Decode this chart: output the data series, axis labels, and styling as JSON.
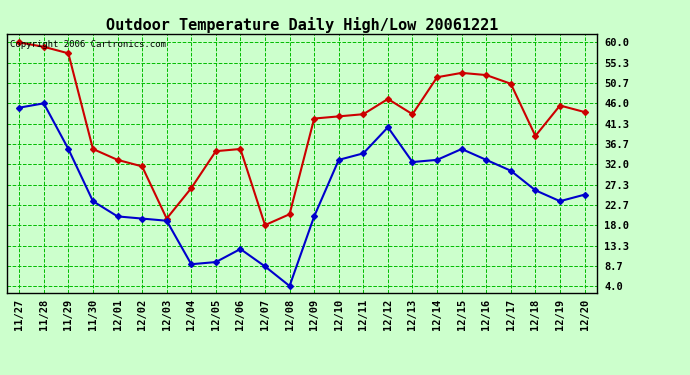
{
  "title": "Outdoor Temperature Daily High/Low 20061221",
  "copyright": "Copyright 2006 Cartronics.com",
  "dates": [
    "11/27",
    "11/28",
    "11/29",
    "11/30",
    "12/01",
    "12/02",
    "12/03",
    "12/04",
    "12/05",
    "12/06",
    "12/07",
    "12/08",
    "12/09",
    "12/10",
    "12/11",
    "12/12",
    "12/13",
    "12/14",
    "12/15",
    "12/16",
    "12/17",
    "12/18",
    "12/19",
    "12/20"
  ],
  "high": [
    60.0,
    59.0,
    57.5,
    35.5,
    33.0,
    31.5,
    19.5,
    26.5,
    35.0,
    35.5,
    18.0,
    20.5,
    42.5,
    43.0,
    43.5,
    47.0,
    43.5,
    52.0,
    53.0,
    52.5,
    50.5,
    38.5,
    45.5,
    44.0
  ],
  "low": [
    45.0,
    46.0,
    35.5,
    23.5,
    20.0,
    19.5,
    19.0,
    9.0,
    9.5,
    12.5,
    8.5,
    4.0,
    20.0,
    33.0,
    34.5,
    40.5,
    32.5,
    33.0,
    35.5,
    33.0,
    30.5,
    26.0,
    23.5,
    25.0
  ],
  "high_color": "#cc0000",
  "low_color": "#0000cc",
  "marker": "D",
  "marker_size": 3,
  "bg_color": "#ccffcc",
  "plot_bg": "#ccffcc",
  "grid_color": "#00bb00",
  "yticks": [
    4.0,
    8.7,
    13.3,
    18.0,
    22.7,
    27.3,
    32.0,
    36.7,
    41.3,
    46.0,
    50.7,
    55.3,
    60.0
  ],
  "ylim": [
    2.5,
    62.0
  ],
  "title_fontsize": 11,
  "tick_fontsize": 7.5,
  "linewidth": 1.5
}
